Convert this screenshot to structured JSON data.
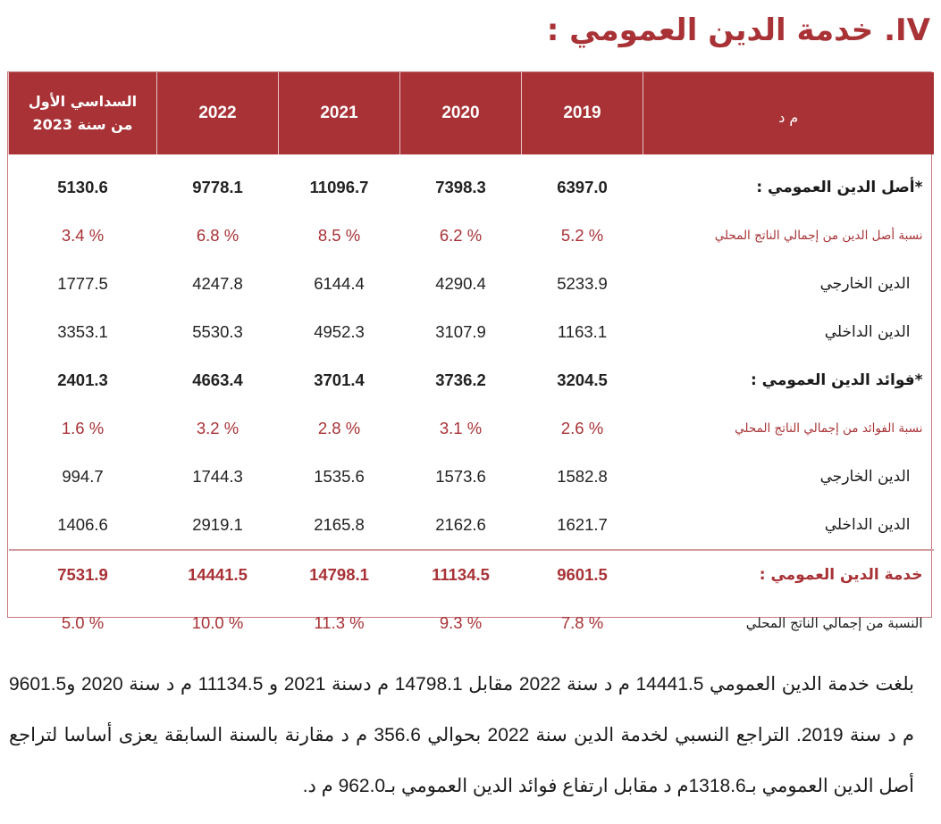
{
  "section": {
    "title": "IV. خدمة الدين العمومي :"
  },
  "table": {
    "header": {
      "unit": "م د",
      "years": [
        "2019",
        "2020",
        "2021",
        "2022"
      ],
      "h1_line1": "السداسي الأول",
      "h1_line2": "من سنة 2023"
    },
    "rows": [
      {
        "label": "*أصل الدين العمومي :",
        "type": "main",
        "values": [
          "6397.0",
          "7398.3",
          "11096.7",
          "9778.1",
          "5130.6"
        ]
      },
      {
        "label": "نسبة أصل الدين من إجمالي الناتج المحلي",
        "type": "ratio",
        "values": [
          "% 5.2",
          "% 6.2",
          "% 8.5",
          "% 6.8",
          "% 3.4"
        ]
      },
      {
        "label": "الدين الخارجي",
        "type": "sub",
        "values": [
          "5233.9",
          "4290.4",
          "6144.4",
          "4247.8",
          "1777.5"
        ]
      },
      {
        "label": "الدين الداخلي",
        "type": "sub",
        "values": [
          "1163.1",
          "3107.9",
          "4952.3",
          "5530.3",
          "3353.1"
        ]
      },
      {
        "label": "*فوائد الدين العمومي :",
        "type": "main",
        "values": [
          "3204.5",
          "3736.2",
          "3701.4",
          "4663.4",
          "2401.3"
        ]
      },
      {
        "label": "نسبة الفوائد من إجمالي الناتج المحلي",
        "type": "ratio",
        "values": [
          "% 2.6",
          "% 3.1",
          "% 2.8",
          "% 3.2",
          "% 1.6"
        ]
      },
      {
        "label": "الدين الخارجي",
        "type": "sub",
        "values": [
          "1582.8",
          "1573.6",
          "1535.6",
          "1744.3",
          "994.7"
        ]
      },
      {
        "label": "الدين الداخلي",
        "type": "sub",
        "values": [
          "1621.7",
          "2162.6",
          "2165.8",
          "2919.1",
          "1406.6"
        ]
      },
      {
        "label": "خدمة الدين العمومي :",
        "type": "total",
        "values": [
          "9601.5",
          "11134.5",
          "14798.1",
          "14441.5",
          "7531.9"
        ]
      },
      {
        "label": "النسبة من إجمالي الناتج المحلي",
        "type": "total-ratio",
        "values": [
          "% 7.8",
          "% 9.3",
          "% 11.3",
          "% 10.0",
          "% 5.0"
        ]
      }
    ]
  },
  "paragraph": {
    "text": "بلغت خدمة الدين العمومي 14441.5 م د سنة 2022 مقابل 14798.1 م دسنة 2021 و 11134.5 م د سنة 2020 و9601.5 م د سنة 2019. التراجع النسبي لخدمة الدين سنة 2022 بحوالي 356.6 م د مقارنة بالسنة السابقة يعزى أساسا لتراجع أصل الدين العمومي بـ1318.6م د مقابل ارتفاع فوائد الدين العمومي بـ962.0 م د."
  },
  "colors": {
    "accent": "#a83236",
    "border": "#c77b80",
    "text": "#1a1a1a"
  }
}
